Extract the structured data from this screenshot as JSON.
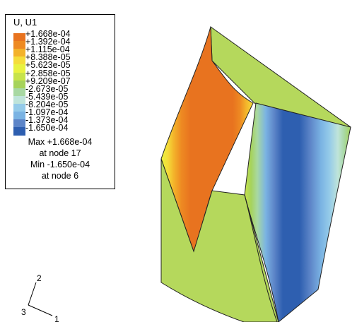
{
  "legend": {
    "title": "U, U1",
    "levels": [
      {
        "label": "+1.668e-04",
        "color": "#e8731f"
      },
      {
        "label": "+1.392e-04",
        "color": "#ee8a22"
      },
      {
        "label": "+1.115e-04",
        "color": "#f3b22a"
      },
      {
        "label": "+8.388e-05",
        "color": "#f5dd3a"
      },
      {
        "label": "+5.623e-05",
        "color": "#e9f240"
      },
      {
        "label": "+2.858e-05",
        "color": "#c7e34a"
      },
      {
        "label": "+9.209e-07",
        "color": "#a6d35b"
      },
      {
        "label": "-2.673e-05",
        "color": "#a8d8a2"
      },
      {
        "label": "-5.439e-05",
        "color": "#bfe4da"
      },
      {
        "label": "-8.204e-05",
        "color": "#95cbe9"
      },
      {
        "label": "-1.097e-04",
        "color": "#7ab3e3"
      },
      {
        "label": "-1.373e-04",
        "color": "#5d85c8"
      },
      {
        "label": "-1.650e-04",
        "color": "#2e5fb0"
      }
    ],
    "max_line": "Max +1.668e-04",
    "max_node": "at node 17",
    "min_line": "Min -1.650e-04",
    "min_node": "at node 6"
  },
  "triad": {
    "axis_2": "2",
    "axis_3": "3",
    "axis_1": "1"
  },
  "colors": {
    "face_green": "#b5d85c",
    "edge": "#222222"
  }
}
